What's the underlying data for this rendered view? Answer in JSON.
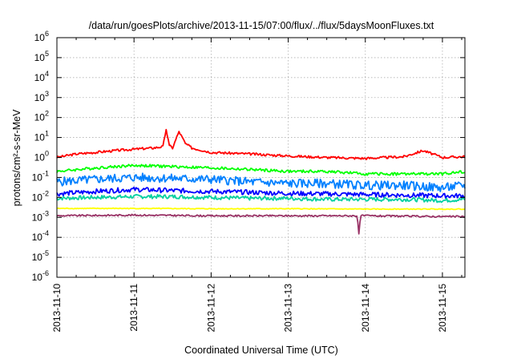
{
  "chart_data": {
    "type": "line",
    "title": "/data/run/goesPlots/archive/2013-11-15/07:00/flux/../flux/5daysMoonFluxes.txt",
    "xlabel": "Coordinated Universal Time (UTC)",
    "ylabel": "protons/cm²-s-sr-MeV",
    "y_scale": "log",
    "ylim": [
      1e-06,
      1000000.0
    ],
    "xlim": [
      "2013-11-10",
      "2013-11-15 07:00"
    ],
    "grid": true,
    "legend": "none",
    "yticks": [
      {
        "value": 1000000.0,
        "exp": "6"
      },
      {
        "value": 100000.0,
        "exp": "5"
      },
      {
        "value": 10000.0,
        "exp": "4"
      },
      {
        "value": 1000.0,
        "exp": "3"
      },
      {
        "value": 100.0,
        "exp": "2"
      },
      {
        "value": 10.0,
        "exp": "1"
      },
      {
        "value": 1.0,
        "exp": "0"
      },
      {
        "value": 0.1,
        "exp": "-1"
      },
      {
        "value": 0.01,
        "exp": "-2"
      },
      {
        "value": 0.001,
        "exp": "-3"
      },
      {
        "value": 0.0001,
        "exp": "-4"
      },
      {
        "value": 1e-05,
        "exp": "-5"
      },
      {
        "value": 1e-06,
        "exp": "-6"
      }
    ],
    "ytick_base": "10",
    "xticks": [
      "2013-11-10",
      "2013-11-11",
      "2013-11-12",
      "2013-11-13",
      "2013-11-14",
      "2013-11-15"
    ],
    "series": [
      {
        "color": "#ff0000",
        "x": [
          "2013-11-10 00:00",
          "2013-11-10 06:00",
          "2013-11-10 12:00",
          "2013-11-10 18:00",
          "2013-11-11 00:00",
          "2013-11-11 06:00",
          "2013-11-11 09:00",
          "2013-11-11 10:00",
          "2013-11-11 11:00",
          "2013-11-11 12:00",
          "2013-11-11 14:00",
          "2013-11-11 16:00",
          "2013-11-11 18:00",
          "2013-11-12 00:00",
          "2013-11-12 12:00",
          "2013-11-13 00:00",
          "2013-11-13 12:00",
          "2013-11-14 00:00",
          "2013-11-14 12:00",
          "2013-11-14 18:00",
          "2013-11-15 00:00",
          "2013-11-15 07:00"
        ],
        "values": [
          1.0,
          1.5,
          1.8,
          2.2,
          2.6,
          3.0,
          3.5,
          25,
          4,
          3,
          20,
          5,
          3,
          1.8,
          1.5,
          1.2,
          1.0,
          0.9,
          1.1,
          2.2,
          1.0,
          1.1
        ]
      },
      {
        "color": "#00ff00",
        "x": [
          "2013-11-10 00:00",
          "2013-11-10 12:00",
          "2013-11-11 00:00",
          "2013-11-11 12:00",
          "2013-11-12 00:00",
          "2013-11-12 12:00",
          "2013-11-13 00:00",
          "2013-11-13 12:00",
          "2013-11-14 00:00",
          "2013-11-14 12:00",
          "2013-11-15 00:00",
          "2013-11-15 07:00"
        ],
        "values": [
          0.2,
          0.3,
          0.4,
          0.35,
          0.3,
          0.25,
          0.2,
          0.2,
          0.15,
          0.15,
          0.15,
          0.2
        ]
      },
      {
        "color": "#0080ff",
        "x": [
          "2013-11-10 00:00",
          "2013-11-10 12:00",
          "2013-11-11 00:00",
          "2013-11-11 12:00",
          "2013-11-12 00:00",
          "2013-11-12 12:00",
          "2013-11-13 00:00",
          "2013-11-13 12:00",
          "2013-11-14 00:00",
          "2013-11-14 12:00",
          "2013-11-15 00:00",
          "2013-11-15 07:00"
        ],
        "values": [
          0.06,
          0.08,
          0.1,
          0.09,
          0.08,
          0.06,
          0.05,
          0.05,
          0.04,
          0.04,
          0.03,
          0.04
        ]
      },
      {
        "color": "#0000ff",
        "x": [
          "2013-11-10 00:00",
          "2013-11-10 12:00",
          "2013-11-11 00:00",
          "2013-11-11 12:00",
          "2013-11-12 00:00",
          "2013-11-12 12:00",
          "2013-11-13 00:00",
          "2013-11-13 12:00",
          "2013-11-14 00:00",
          "2013-11-14 12:00",
          "2013-11-15 00:00",
          "2013-11-15 07:00"
        ],
        "values": [
          0.015,
          0.02,
          0.025,
          0.022,
          0.02,
          0.018,
          0.016,
          0.015,
          0.014,
          0.013,
          0.012,
          0.012
        ]
      },
      {
        "color": "#00d0a0",
        "x": [
          "2013-11-10 00:00",
          "2013-11-10 12:00",
          "2013-11-11 00:00",
          "2013-11-11 12:00",
          "2013-11-12 00:00",
          "2013-11-12 12:00",
          "2013-11-13 00:00",
          "2013-11-13 12:00",
          "2013-11-14 00:00",
          "2013-11-14 12:00",
          "2013-11-15 00:00",
          "2013-11-15 07:00"
        ],
        "values": [
          0.009,
          0.01,
          0.011,
          0.011,
          0.01,
          0.009,
          0.009,
          0.008,
          0.008,
          0.008,
          0.007,
          0.008
        ]
      },
      {
        "color": "#ffff00",
        "x": [
          "2013-11-10 00:00",
          "2013-11-11 00:00",
          "2013-11-12 00:00",
          "2013-11-13 00:00",
          "2013-11-14 00:00",
          "2013-11-15 00:00",
          "2013-11-15 07:00"
        ],
        "values": [
          0.0028,
          0.0028,
          0.0027,
          0.0027,
          0.0026,
          0.0026,
          0.0026
        ]
      },
      {
        "color": "#993366",
        "x": [
          "2013-11-10 00:00",
          "2013-11-11 00:00",
          "2013-11-12 00:00",
          "2013-11-13 00:00",
          "2013-11-13 21:30",
          "2013-11-13 22:00",
          "2013-11-13 22:30",
          "2013-11-14 00:00",
          "2013-11-15 00:00",
          "2013-11-15 07:00"
        ],
        "values": [
          0.0012,
          0.0013,
          0.0012,
          0.0012,
          0.0012,
          0.00015,
          0.0012,
          0.0012,
          0.0011,
          0.0011
        ]
      }
    ]
  }
}
